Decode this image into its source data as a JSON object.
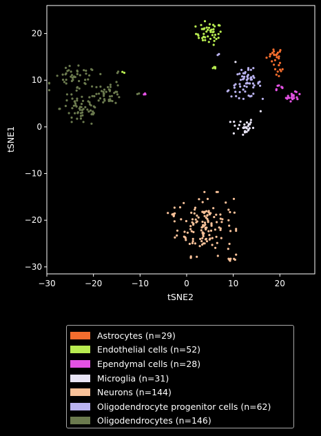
{
  "chart_data": {
    "type": "scatter",
    "xlabel": "tSNE2",
    "ylabel": "tSNE1",
    "xlim": [
      -30,
      27.5
    ],
    "ylim": [
      -31.5,
      26
    ],
    "xticks": [
      -30,
      -20,
      -10,
      0,
      10,
      20
    ],
    "yticks": [
      -30,
      -20,
      -10,
      0,
      10,
      20
    ],
    "grid": false,
    "legend_position": "below",
    "series": [
      {
        "name": "Astrocytes (n=29)",
        "color": "#f46d2e",
        "clusters": [
          {
            "center": [
              19.0,
              15.3
            ],
            "spread": [
              0.9,
              0.9
            ],
            "count": 21
          },
          {
            "center": [
              20.0,
              12.0
            ],
            "spread": [
              0.6,
              0.6
            ],
            "count": 8
          }
        ]
      },
      {
        "name": "Endothelial cells (n=52)",
        "color": "#b8ec50",
        "clusters": [
          {
            "center": [
              4.8,
              20.0
            ],
            "spread": [
              1.4,
              1.2
            ],
            "count": 46
          },
          {
            "center": [
              6.2,
              12.6
            ],
            "spread": [
              0.5,
              0.15
            ],
            "count": 4
          },
          {
            "center": [
              -13.8,
              11.7
            ],
            "spread": [
              0.2,
              0.2
            ],
            "count": 2
          }
        ]
      },
      {
        "name": "Ependymal cells (n=28)",
        "color": "#e452e4",
        "clusters": [
          {
            "center": [
              19.6,
              8.5
            ],
            "spread": [
              0.8,
              0.5
            ],
            "count": 7
          },
          {
            "center": [
              21.8,
              5.8
            ],
            "spread": [
              0.5,
              0.5
            ],
            "count": 6
          },
          {
            "center": [
              24.0,
              6.5
            ],
            "spread": [
              0.6,
              0.5
            ],
            "count": 6
          },
          {
            "center": [
              22.5,
              6.5
            ],
            "spread": [
              0.4,
              0.4
            ],
            "count": 6
          },
          {
            "center": [
              -8.8,
              7.1
            ],
            "spread": [
              0.2,
              0.1
            ],
            "count": 3
          }
        ]
      },
      {
        "name": "Microglia (n=31)",
        "color": "#e8e4f5",
        "clusters": [
          {
            "center": [
              12.0,
              0.0
            ],
            "spread": [
              1.2,
              1.0
            ],
            "count": 29
          },
          {
            "center": [
              15.8,
              3.3
            ],
            "spread": [
              0.1,
              0.1
            ],
            "count": 1
          },
          {
            "center": [
              10.5,
              13.8
            ],
            "spread": [
              0.1,
              0.1
            ],
            "count": 1
          }
        ]
      },
      {
        "name": "Neurons (n=144)",
        "color": "#f8c199",
        "clusters": [
          {
            "center": [
              4.0,
              -21.0
            ],
            "spread": [
              3.0,
              3.2
            ],
            "count": 131
          },
          {
            "center": [
              9.6,
              -28.4
            ],
            "spread": [
              0.6,
              0.3
            ],
            "count": 7
          },
          {
            "center": [
              -2.8,
              -18.7
            ],
            "spread": [
              0.7,
              0.2
            ],
            "count": 6
          }
        ]
      },
      {
        "name": "Oligodendrocyte progenitor cells (n=62)",
        "color": "#bab3f0",
        "clusters": [
          {
            "center": [
              12.8,
              9.3
            ],
            "spread": [
              1.6,
              1.5
            ],
            "count": 58
          },
          {
            "center": [
              8.5,
              7.8
            ],
            "spread": [
              0.4,
              0.4
            ],
            "count": 2
          },
          {
            "center": [
              6.8,
              15.6
            ],
            "spread": [
              0.3,
              0.2
            ],
            "count": 2
          }
        ]
      },
      {
        "name": "Oligodendrocytes (n=146)",
        "color": "#6b7a4e",
        "clusters": [
          {
            "center": [
              -22.5,
              4.0
            ],
            "spread": [
              2.3,
              2.0
            ],
            "count": 62
          },
          {
            "center": [
              -24.0,
              10.5
            ],
            "spread": [
              2.5,
              1.2
            ],
            "count": 44
          },
          {
            "center": [
              -16.5,
              7.3
            ],
            "spread": [
              1.3,
              1.2
            ],
            "count": 36
          },
          {
            "center": [
              -10.2,
              7.1
            ],
            "spread": [
              0.2,
              0.1
            ],
            "count": 2
          },
          {
            "center": [
              -14.8,
              11.4
            ],
            "spread": [
              0.2,
              0.2
            ],
            "count": 2
          }
        ]
      }
    ]
  }
}
